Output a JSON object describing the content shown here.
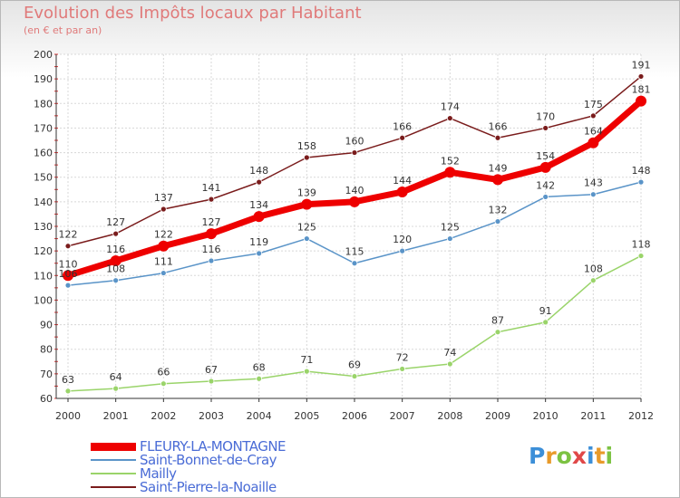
{
  "chart_data": {
    "type": "line",
    "title": "Evolution des Impôts locaux par Habitant",
    "subtitle": "(en € et par an)",
    "x": [
      "2000",
      "2001",
      "2002",
      "2003",
      "2004",
      "2005",
      "2006",
      "2007",
      "2008",
      "2009",
      "2010",
      "2011",
      "2012"
    ],
    "ylim": [
      60,
      200
    ],
    "yticks": [
      60,
      70,
      80,
      90,
      100,
      110,
      120,
      130,
      140,
      150,
      160,
      170,
      180,
      190,
      200
    ],
    "grid": true,
    "legend_position": "bottom-left",
    "series": [
      {
        "name": "Saint-Pierre-la-Noaille",
        "color": "#7a1c1c",
        "values": [
          122,
          127,
          137,
          141,
          148,
          158,
          160,
          166,
          174,
          166,
          170,
          175,
          191
        ]
      },
      {
        "name": "FLEURY-LA-MONTAGNE",
        "color": "#ee0000",
        "values": [
          110,
          116,
          122,
          127,
          134,
          139,
          140,
          144,
          152,
          149,
          154,
          164,
          181
        ]
      },
      {
        "name": "Saint-Bonnet-de-Cray",
        "color": "#5a94c8",
        "values": [
          106,
          108,
          111,
          116,
          119,
          125,
          115,
          120,
          125,
          132,
          142,
          143,
          148
        ]
      },
      {
        "name": "Mailly",
        "color": "#9ad46a",
        "values": [
          63,
          64,
          66,
          67,
          68,
          71,
          69,
          72,
          74,
          87,
          91,
          108,
          118
        ]
      }
    ]
  },
  "legend": {
    "items": [
      {
        "label": "FLEURY-LA-MONTAGNE",
        "color": "#ee0000",
        "width": 9
      },
      {
        "label": "Saint-Bonnet-de-Cray",
        "color": "#5a94c8",
        "width": 1.5
      },
      {
        "label": "Mailly",
        "color": "#9ad46a",
        "width": 1.5
      },
      {
        "label": "Saint-Pierre-la-Noaille",
        "color": "#7a1c1c",
        "width": 1.5
      }
    ]
  },
  "logo": {
    "letters": [
      "P",
      "r",
      "o",
      "x",
      "i",
      "t",
      "i"
    ],
    "colors": [
      "#3c8fd8",
      "#e89a2a",
      "#7cc242",
      "#e04848",
      "#3c8fd8",
      "#e89a2a",
      "#7cc242"
    ]
  }
}
